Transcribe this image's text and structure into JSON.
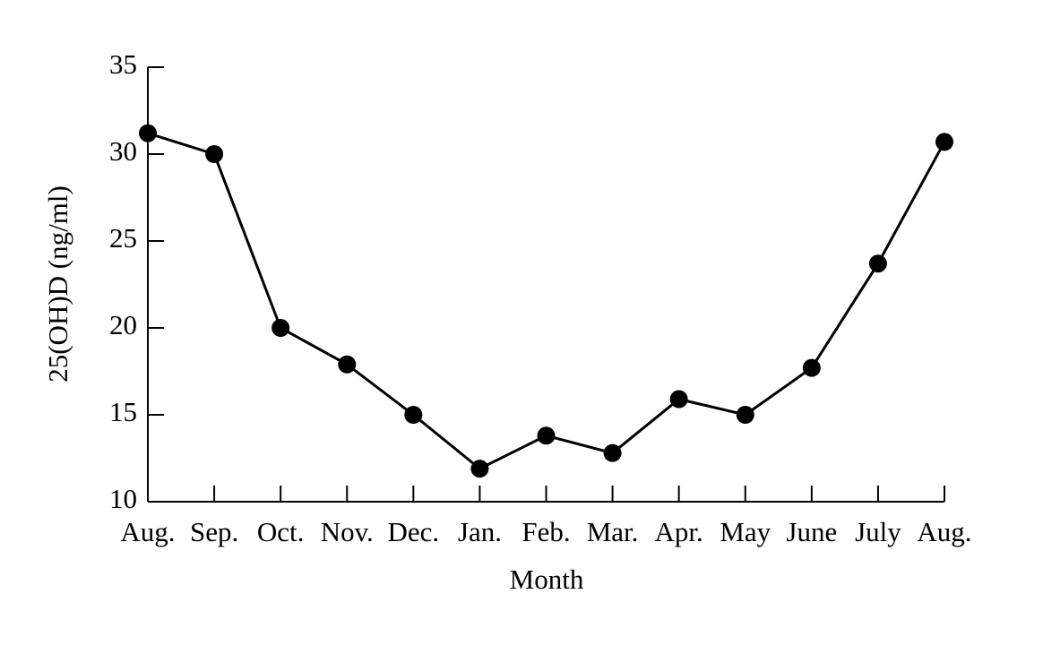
{
  "chart_data": {
    "type": "line",
    "x_label": "Month",
    "y_label": "25(OH)D (ng/ml)",
    "categories": [
      "Aug.",
      "Sep.",
      "Oct.",
      "Nov.",
      "Dec.",
      "Jan.",
      "Feb.",
      "Mar.",
      "Apr.",
      "May",
      "June",
      "July",
      "Aug."
    ],
    "series": [
      {
        "color": "#000000",
        "values": [
          31.2,
          30,
          20,
          17.9,
          15,
          11.9,
          13.8,
          12.8,
          15.9,
          15,
          17.7,
          23.7,
          30.7
        ]
      }
    ],
    "ylim": [
      10,
      35
    ],
    "yticks": [
      10,
      15,
      20,
      25,
      30,
      35
    ]
  }
}
